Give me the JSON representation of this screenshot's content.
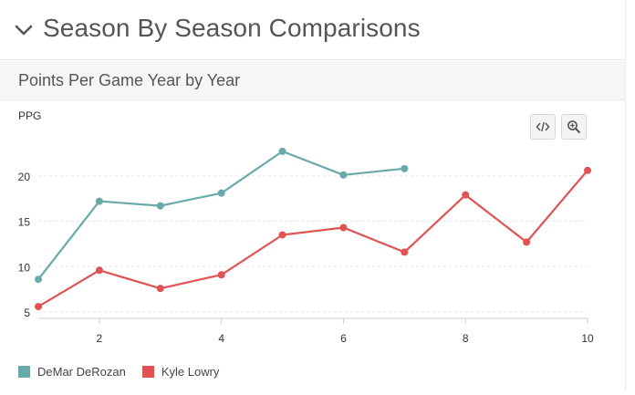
{
  "section": {
    "title": "Season By Season Comparisons"
  },
  "subheader": {
    "title": "Points Per Game Year by Year"
  },
  "toolbar": {
    "code_icon": "code-icon",
    "zoom_icon": "zoom-in-icon"
  },
  "colors": {
    "derozan": "#6aa9aa",
    "lowry": "#e05254"
  },
  "chart_data": {
    "type": "line",
    "ylabel": "PPG",
    "xlabel": "",
    "xlim": [
      1,
      10
    ],
    "ylim": [
      4.3,
      24.5
    ],
    "x_ticks": [
      2,
      4,
      6,
      8,
      10
    ],
    "y_ticks": [
      5,
      10,
      15,
      20
    ],
    "grid": true,
    "legend": "bottom-left",
    "series": [
      {
        "name": "DeMar DeRozan",
        "x": [
          1,
          2,
          3,
          4,
          5,
          6,
          7
        ],
        "values": [
          8.6,
          17.2,
          16.7,
          18.1,
          22.7,
          20.1,
          20.8
        ]
      },
      {
        "name": "Kyle Lowry",
        "x": [
          1,
          2,
          3,
          4,
          5,
          6,
          7,
          8,
          9,
          10
        ],
        "values": [
          5.6,
          9.6,
          7.6,
          9.1,
          13.5,
          14.3,
          11.6,
          17.9,
          12.7,
          20.6
        ]
      }
    ]
  }
}
